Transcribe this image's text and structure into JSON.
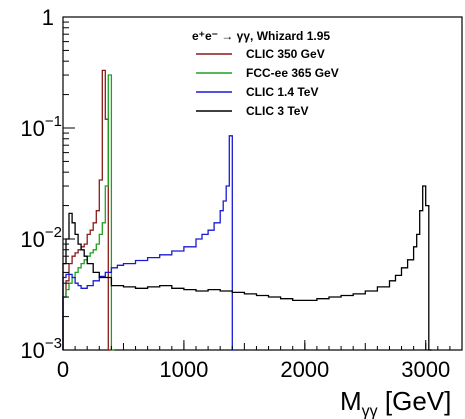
{
  "chart_data": {
    "type": "line",
    "legend_title": "e⁺e⁻ → γγ, Whizard 1.95",
    "xlabel": "M",
    "xlabel_sub": "γγ",
    "xlabel_unit": " [GeV]",
    "xlim": [
      0,
      3300
    ],
    "ylim": [
      0.001,
      1
    ],
    "y_scale": "log",
    "x_ticks": [
      {
        "value": 0,
        "label": "0"
      },
      {
        "value": 1000,
        "label": "1000"
      },
      {
        "value": 2000,
        "label": "2000"
      },
      {
        "value": 3000,
        "label": "3000"
      }
    ],
    "y_ticks": [
      {
        "value": 0.001,
        "label": "10",
        "exp": "−3"
      },
      {
        "value": 0.01,
        "label": "10",
        "exp": "−2"
      },
      {
        "value": 0.1,
        "label": "10",
        "exp": "−1"
      },
      {
        "value": 1,
        "label": "1",
        "exp": ""
      }
    ],
    "legend_position": "top-right",
    "series": [
      {
        "name": "CLIC 350 GeV",
        "color": "#8b1a1a",
        "x": [
          0,
          25,
          50,
          75,
          100,
          125,
          150,
          175,
          200,
          225,
          250,
          275,
          300,
          325,
          350,
          375
        ],
        "y": [
          0.003,
          0.0042,
          0.006,
          0.007,
          0.0075,
          0.008,
          0.0085,
          0.009,
          0.011,
          0.012,
          0.014,
          0.018,
          0.034,
          0.33,
          0.12,
          0.001
        ]
      },
      {
        "name": "FCC-ee 365 GeV",
        "color": "#1fa01f",
        "x": [
          0,
          25,
          50,
          75,
          100,
          125,
          150,
          175,
          200,
          225,
          250,
          275,
          300,
          325,
          350,
          375,
          400
        ],
        "y": [
          0.003,
          0.0035,
          0.004,
          0.0045,
          0.005,
          0.0055,
          0.006,
          0.0065,
          0.007,
          0.0075,
          0.008,
          0.009,
          0.011,
          0.014,
          0.03,
          0.3,
          0.001
        ]
      },
      {
        "name": "CLIC 1.4 TeV",
        "color": "#1a1ad6",
        "x": [
          0,
          25,
          50,
          75,
          100,
          125,
          150,
          175,
          200,
          250,
          300,
          350,
          400,
          450,
          500,
          600,
          700,
          800,
          900,
          1000,
          1100,
          1150,
          1200,
          1250,
          1300,
          1325,
          1350,
          1375,
          1400
        ],
        "y": [
          0.0045,
          0.0048,
          0.0048,
          0.0045,
          0.004,
          0.0038,
          0.0036,
          0.0036,
          0.0038,
          0.0042,
          0.0046,
          0.005,
          0.0055,
          0.0058,
          0.006,
          0.0064,
          0.0068,
          0.0072,
          0.0078,
          0.0085,
          0.01,
          0.011,
          0.012,
          0.014,
          0.018,
          0.022,
          0.03,
          0.085,
          0.001
        ]
      },
      {
        "name": "CLIC 3 TeV",
        "color": "#000000",
        "x": [
          0,
          25,
          50,
          75,
          100,
          125,
          150,
          175,
          200,
          250,
          300,
          400,
          500,
          600,
          700,
          800,
          900,
          1000,
          1100,
          1200,
          1300,
          1400,
          1500,
          1600,
          1700,
          1800,
          1900,
          2000,
          2100,
          2200,
          2300,
          2400,
          2500,
          2600,
          2700,
          2750,
          2800,
          2850,
          2900,
          2925,
          2950,
          2975,
          3000,
          3025
        ],
        "y": [
          0.006,
          0.01,
          0.017,
          0.014,
          0.011,
          0.009,
          0.008,
          0.007,
          0.006,
          0.005,
          0.0045,
          0.0038,
          0.0037,
          0.0036,
          0.0037,
          0.0038,
          0.0036,
          0.0035,
          0.0034,
          0.0035,
          0.0034,
          0.0033,
          0.0032,
          0.0031,
          0.003,
          0.0029,
          0.0028,
          0.0028,
          0.0029,
          0.003,
          0.0031,
          0.0032,
          0.0034,
          0.0037,
          0.0042,
          0.0047,
          0.0055,
          0.0065,
          0.0085,
          0.011,
          0.018,
          0.03,
          0.02,
          0.001
        ]
      }
    ]
  }
}
